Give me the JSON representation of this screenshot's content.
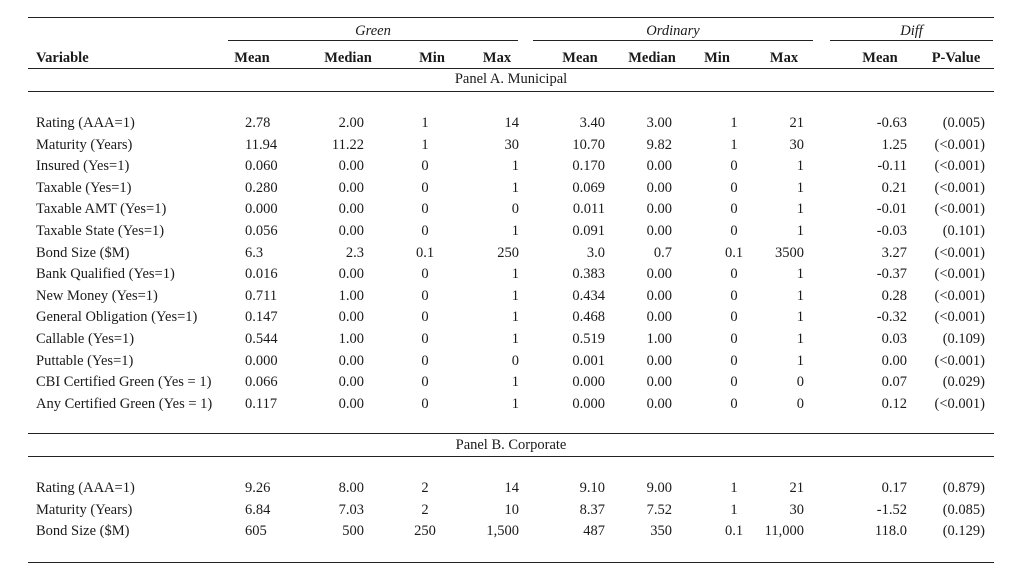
{
  "groups": {
    "green": "Green",
    "ordinary": "Ordinary",
    "diff": "Diff"
  },
  "columns": [
    "Variable",
    "Mean",
    "Median",
    "Min",
    "Max",
    "Mean",
    "Median",
    "Min",
    "Max",
    "Mean",
    "P-Value"
  ],
  "panelA": {
    "title": "Panel A. Municipal",
    "rows": [
      [
        "Rating (AAA=1)",
        "2.78",
        "2.00",
        "1",
        "14",
        "3.40",
        "3.00",
        "1",
        "21",
        "-0.63",
        "(0.005)"
      ],
      [
        "Maturity (Years)",
        "11.94",
        "11.22",
        "1",
        "30",
        "10.70",
        "9.82",
        "1",
        "30",
        "1.25",
        "(<0.001)"
      ],
      [
        "Insured (Yes=1)",
        "0.060",
        "0.00",
        "0",
        "1",
        "0.170",
        "0.00",
        "0",
        "1",
        "-0.11",
        "(<0.001)"
      ],
      [
        "Taxable (Yes=1)",
        "0.280",
        "0.00",
        "0",
        "1",
        "0.069",
        "0.00",
        "0",
        "1",
        "0.21",
        "(<0.001)"
      ],
      [
        "Taxable AMT (Yes=1)",
        "0.000",
        "0.00",
        "0",
        "0",
        "0.011",
        "0.00",
        "0",
        "1",
        "-0.01",
        "(<0.001)"
      ],
      [
        "Taxable State (Yes=1)",
        "0.056",
        "0.00",
        "0",
        "1",
        "0.091",
        "0.00",
        "0",
        "1",
        "-0.03",
        "(0.101)"
      ],
      [
        "Bond Size ($M)",
        "6.3",
        "2.3",
        "0.1",
        "250",
        "3.0",
        "0.7",
        "0.1",
        "3500",
        "3.27",
        "(<0.001)"
      ],
      [
        "Bank Qualified (Yes=1)",
        "0.016",
        "0.00",
        "0",
        "1",
        "0.383",
        "0.00",
        "0",
        "1",
        "-0.37",
        "(<0.001)"
      ],
      [
        "New Money (Yes=1)",
        "0.711",
        "1.00",
        "0",
        "1",
        "0.434",
        "0.00",
        "0",
        "1",
        "0.28",
        "(<0.001)"
      ],
      [
        "General Obligation (Yes=1)",
        "0.147",
        "0.00",
        "0",
        "1",
        "0.468",
        "0.00",
        "0",
        "1",
        "-0.32",
        "(<0.001)"
      ],
      [
        "Callable (Yes=1)",
        "0.544",
        "1.00",
        "0",
        "1",
        "0.519",
        "1.00",
        "0",
        "1",
        "0.03",
        "(0.109)"
      ],
      [
        "Puttable (Yes=1)",
        "0.000",
        "0.00",
        "0",
        "0",
        "0.001",
        "0.00",
        "0",
        "1",
        "0.00",
        "(<0.001)"
      ],
      [
        "CBI Certified Green (Yes = 1)",
        "0.066",
        "0.00",
        "0",
        "1",
        "0.000",
        "0.00",
        "0",
        "0",
        "0.07",
        "(0.029)"
      ],
      [
        "Any Certified Green (Yes = 1)",
        "0.117",
        "0.00",
        "0",
        "1",
        "0.000",
        "0.00",
        "0",
        "0",
        "0.12",
        "(<0.001)"
      ]
    ]
  },
  "panelB": {
    "title": "Panel B. Corporate",
    "rows": [
      [
        "Rating (AAA=1)",
        "9.26",
        "8.00",
        "2",
        "14",
        "9.10",
        "9.00",
        "1",
        "21",
        "0.17",
        "(0.879)"
      ],
      [
        "Maturity (Years)",
        "6.84",
        "7.03",
        "2",
        "10",
        "8.37",
        "7.52",
        "1",
        "30",
        "-1.52",
        "(0.085)"
      ],
      [
        "Bond Size ($M)",
        "605",
        "500",
        "250",
        "1,500",
        "487",
        "350",
        "0.1",
        "11,000",
        "118.0",
        "(0.129)"
      ]
    ]
  }
}
